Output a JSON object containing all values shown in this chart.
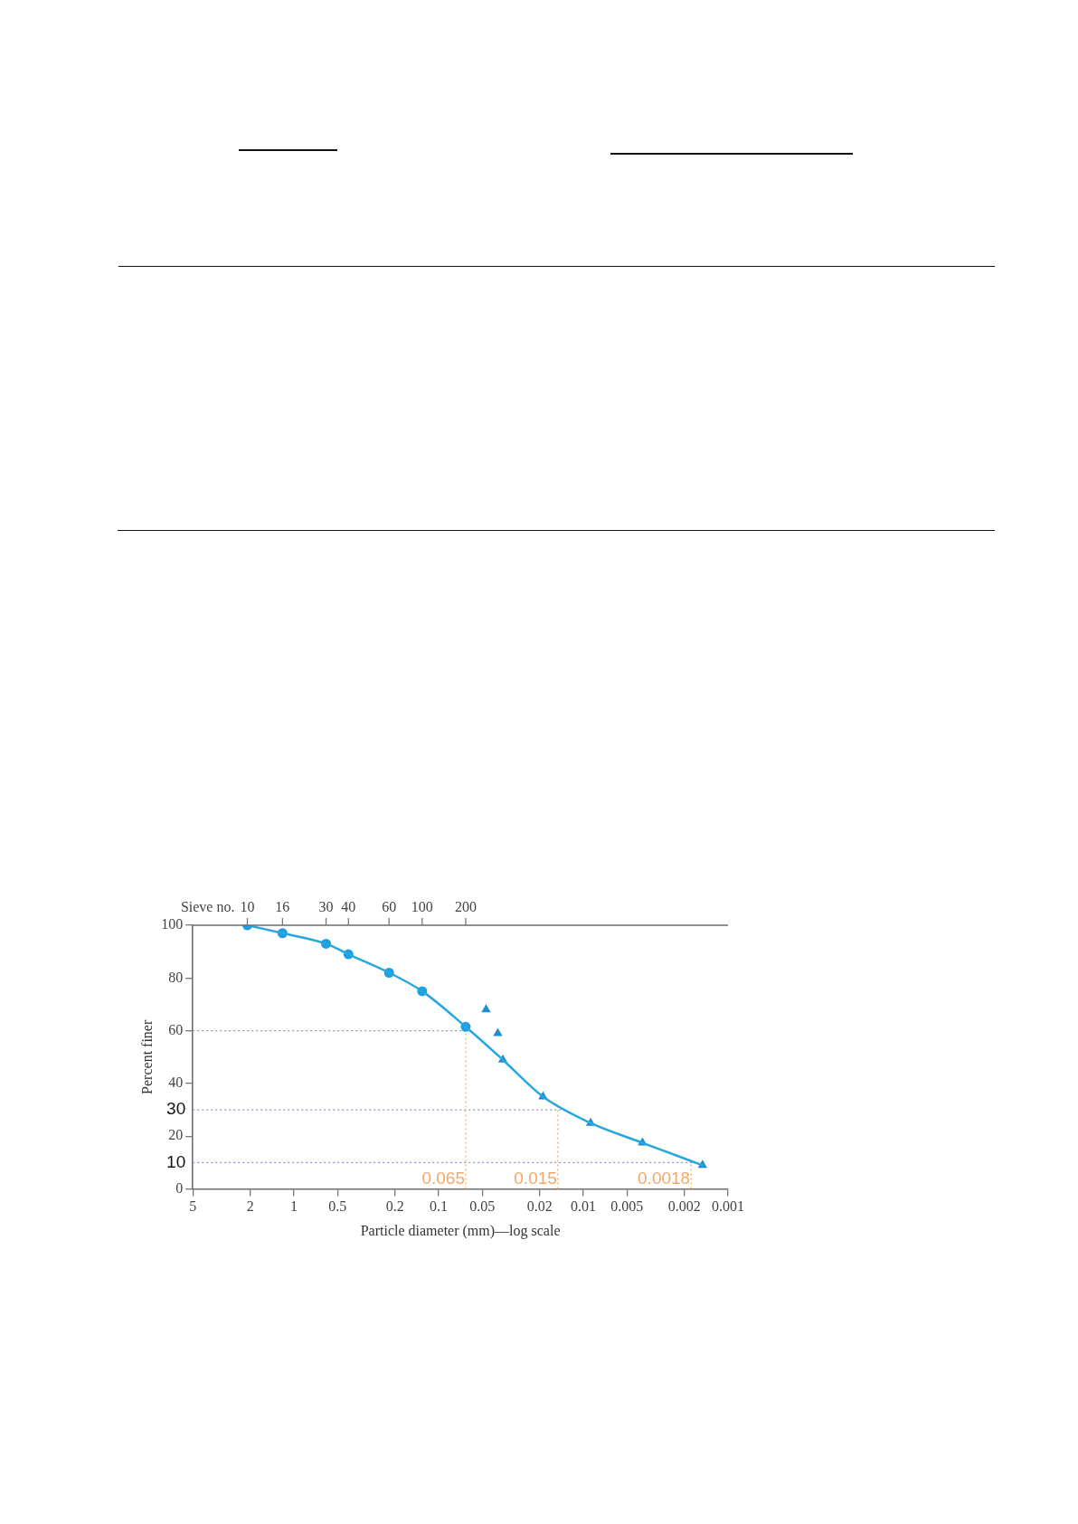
{
  "chart_data": {
    "type": "scatter",
    "xlabel": "Particle diameter (mm)—log scale",
    "ylabel": "Percent finer",
    "log": "x",
    "xlim": [
      5,
      0.001
    ],
    "xticks": [
      5,
      2,
      1,
      0.5,
      0.2,
      0.1,
      0.05,
      0.02,
      0.01,
      0.005,
      0.002,
      0.001
    ],
    "ylim": [
      0,
      100
    ],
    "yticks": [
      0,
      20,
      40,
      60,
      80,
      100
    ],
    "series": [
      {
        "type": "line",
        "color": "#27a7e1",
        "marker": "none",
        "x": [
          2.1,
          1.2,
          0.6,
          0.42,
          0.22,
          0.13,
          0.065,
          0.036,
          0.019,
          0.0089,
          0.0039,
          0.0015
        ],
        "values": [
          100,
          97,
          93,
          89,
          82,
          75,
          61.5,
          49,
          35,
          25,
          17.5,
          9
        ]
      },
      {
        "color": "#1d9fe0",
        "marker": "circle",
        "x": [
          2.1,
          1.2,
          0.6,
          0.42,
          0.22,
          0.13,
          0.065
        ],
        "values": [
          100,
          97,
          93,
          89,
          82,
          75,
          61.5
        ]
      },
      {
        "color": "#1d8fd0",
        "marker": "triangle",
        "x": [
          0.047,
          0.039,
          0.036,
          0.019,
          0.0089,
          0.0039,
          0.0015
        ],
        "values": [
          68,
          59,
          49,
          35,
          25,
          17.5,
          9
        ]
      }
    ],
    "annotations": [
      "Sieve no.",
      {
        "text": "10",
        "x": 2.1
      },
      {
        "text": "16",
        "x": 1.2
      },
      {
        "text": "30",
        "x": 0.6
      },
      {
        "text": "40",
        "x": 0.42
      },
      {
        "text": "60",
        "x": 0.22
      },
      {
        "text": "100",
        "x": 0.13
      },
      {
        "text": "200",
        "x": 0.065
      }
    ],
    "ref_lines": [
      {
        "axis": "y",
        "value": 60,
        "color": "#8595cf",
        "line_style": "dotted"
      },
      {
        "axis": "y",
        "value": 30,
        "label": "30",
        "color": "#8595cf",
        "line_style": "dotted"
      },
      {
        "axis": "y",
        "value": 10,
        "label": "10",
        "color": "#8595cf",
        "line_style": "dotted"
      },
      {
        "axis": "x",
        "value": 0.065,
        "label": "0.065",
        "color": "#f2a868",
        "line_style": "dotted"
      },
      {
        "axis": "x",
        "value": 0.015,
        "label": "0.015",
        "color": "#f2a868",
        "line_style": "dotted"
      },
      {
        "axis": "x",
        "value": 0.0018,
        "label": "0.0018",
        "color": "#f2a868",
        "line_style": "dotted"
      }
    ]
  }
}
